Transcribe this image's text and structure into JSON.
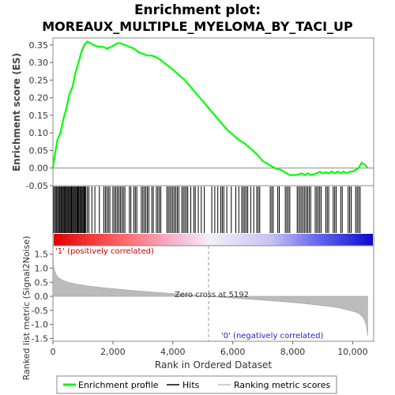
{
  "chart_data": {
    "type": "line",
    "title_line1": "Enrichment plot:",
    "title_line2": "MOREAUX_MULTIPLE_MYELOMA_BY_TACI_UP",
    "es_panel": {
      "ylabel": "Enrichment score (ES)",
      "ylim": [
        -0.05,
        0.37
      ],
      "yticks": [
        "0.35",
        "0.30",
        "0.25",
        "0.20",
        "0.15",
        "0.10",
        "0.05",
        "0.00",
        "-0.05"
      ],
      "ytick_values": [
        0.35,
        0.3,
        0.25,
        0.2,
        0.15,
        0.1,
        0.05,
        0.0,
        -0.05
      ],
      "series": [
        {
          "name": "Enrichment profile",
          "color": "#00ff00",
          "x": [
            0,
            50,
            150,
            250,
            350,
            450,
            550,
            650,
            750,
            850,
            950,
            1050,
            1150,
            1250,
            1350,
            1500,
            1650,
            1800,
            1950,
            2050,
            2150,
            2250,
            2400,
            2550,
            2700,
            2850,
            3000,
            3150,
            3300,
            3450,
            3550,
            3700,
            3850,
            4000,
            4200,
            4400,
            4600,
            4800,
            5000,
            5200,
            5400,
            5600,
            5800,
            6000,
            6200,
            6400,
            6600,
            6800,
            7000,
            7200,
            7400,
            7600,
            7700,
            7800,
            7900,
            8000,
            8100,
            8200,
            8300,
            8400,
            8500,
            8600,
            8700,
            8800,
            8900,
            9000,
            9100,
            9200,
            9300,
            9400,
            9500,
            9600,
            9700,
            9800,
            9900,
            10000,
            10100,
            10200,
            10300,
            10400,
            10500
          ],
          "y": [
            0.0,
            0.03,
            0.08,
            0.1,
            0.14,
            0.17,
            0.21,
            0.23,
            0.27,
            0.3,
            0.33,
            0.35,
            0.36,
            0.355,
            0.35,
            0.345,
            0.345,
            0.34,
            0.345,
            0.35,
            0.355,
            0.355,
            0.35,
            0.345,
            0.34,
            0.33,
            0.325,
            0.32,
            0.32,
            0.315,
            0.31,
            0.3,
            0.29,
            0.28,
            0.265,
            0.25,
            0.23,
            0.21,
            0.19,
            0.17,
            0.15,
            0.13,
            0.11,
            0.095,
            0.08,
            0.07,
            0.055,
            0.04,
            0.02,
            0.01,
            0.0,
            -0.005,
            -0.01,
            -0.015,
            -0.02,
            -0.02,
            -0.02,
            -0.018,
            -0.015,
            -0.02,
            -0.015,
            -0.02,
            -0.018,
            -0.015,
            -0.01,
            -0.015,
            -0.012,
            -0.015,
            -0.01,
            -0.015,
            -0.01,
            -0.015,
            -0.01,
            -0.015,
            -0.01,
            -0.01,
            -0.005,
            0.0,
            0.015,
            0.01,
            0.0
          ]
        }
      ]
    },
    "hits_panel": {
      "series_name": "Hits",
      "hit_positions": [
        20,
        60,
        100,
        130,
        160,
        200,
        230,
        260,
        290,
        320,
        350,
        380,
        410,
        440,
        470,
        500,
        530,
        560,
        590,
        620,
        650,
        680,
        710,
        740,
        770,
        800,
        830,
        860,
        890,
        920,
        950,
        980,
        1010,
        1040,
        1070,
        1100,
        1150,
        1200,
        1300,
        1400,
        1550,
        1700,
        1750,
        1800,
        1850,
        1900,
        2000,
        2050,
        2100,
        2150,
        2200,
        2250,
        2300,
        2350,
        2400,
        2550,
        2600,
        2700,
        2750,
        2800,
        2950,
        3000,
        3050,
        3100,
        3150,
        3200,
        3300,
        3350,
        3450,
        3500,
        3550,
        3600,
        3800,
        3850,
        3900,
        3950,
        4000,
        4050,
        4100,
        4150,
        4200,
        4300,
        4350,
        4400,
        4450,
        4500,
        4600,
        4700,
        4750,
        4850,
        4950,
        5050,
        5300,
        5400,
        5500,
        5600,
        5650,
        5700,
        5800,
        5950,
        6100,
        6200,
        6300,
        6350,
        6400,
        6450,
        6500,
        6600,
        6700,
        6800,
        6850,
        6900,
        7250,
        7300,
        7350,
        7500,
        7550,
        7750,
        7800,
        7850,
        7900,
        8150,
        8200,
        8250,
        8300,
        8350,
        8400,
        8450,
        8500,
        8550,
        8600,
        8750,
        8800,
        8850,
        8900,
        8950,
        9100,
        9150,
        9200,
        9350,
        9400,
        9450,
        9600,
        9650,
        9850,
        9900,
        9950,
        10100,
        10150,
        10200,
        10250
      ]
    },
    "metric_panel": {
      "ylabel": "Ranked list metric (Signal2Noise)",
      "ylim": [
        -1.6,
        1.8
      ],
      "yticks": [
        "1.5",
        "1.0",
        "0.5",
        "0.0",
        "-0.5",
        "-1.0",
        "-1.5"
      ],
      "ytick_values": [
        1.5,
        1.0,
        0.5,
        0.0,
        -0.5,
        -1.0,
        -1.5
      ],
      "zero_cross_label": "Zero cross at 5192",
      "zero_cross": 5192,
      "pos_label": "'1' (positively correlated)",
      "neg_label": "'0' (negatively correlated)",
      "series_name": "Ranking metric scores",
      "curve_x": [
        0,
        20,
        60,
        120,
        200,
        350,
        500,
        800,
        1200,
        1800,
        2500,
        3200,
        4000,
        4600,
        5192,
        5800,
        6500,
        7200,
        7800,
        8400,
        9000,
        9500,
        9900,
        10200,
        10350,
        10450,
        10500
      ],
      "curve_y": [
        1.75,
        1.1,
        0.9,
        0.75,
        0.65,
        0.56,
        0.5,
        0.43,
        0.36,
        0.29,
        0.22,
        0.16,
        0.1,
        0.05,
        0.0,
        -0.05,
        -0.1,
        -0.15,
        -0.2,
        -0.26,
        -0.33,
        -0.4,
        -0.5,
        -0.6,
        -0.75,
        -1.0,
        -1.4
      ]
    },
    "xaxis": {
      "label": "Rank in Ordered Dataset",
      "xlim": [
        0,
        10700
      ],
      "ticks": [
        "0",
        "2,000",
        "4,000",
        "6,000",
        "8,000",
        "10,000"
      ],
      "tick_values": [
        0,
        2000,
        4000,
        6000,
        8000,
        10000
      ]
    },
    "legend": {
      "placement": "bottom",
      "items": [
        {
          "label": "Enrichment profile",
          "color": "#00ff00"
        },
        {
          "label": "Hits",
          "color": "#000000"
        },
        {
          "label": "Ranking metric scores",
          "color": "#c0c0c0"
        }
      ]
    }
  }
}
